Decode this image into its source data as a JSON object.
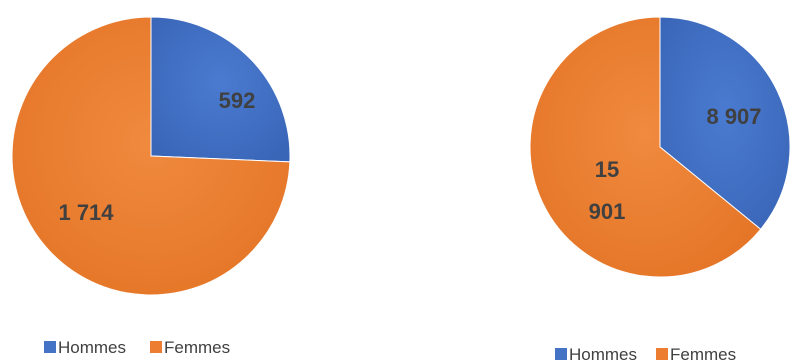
{
  "chart_data": [
    {
      "type": "pie",
      "categories": [
        "Hommes",
        "Femmes"
      ],
      "values": [
        592,
        1714
      ],
      "data_labels": [
        "592",
        "1 714"
      ],
      "colors": [
        "#4472c4",
        "#ed7d31"
      ],
      "legend": [
        "Hommes",
        "Femmes"
      ],
      "legend_position": "bottom"
    },
    {
      "type": "pie",
      "categories": [
        "Hommes",
        "Femmes"
      ],
      "values": [
        8907,
        15901
      ],
      "data_labels": [
        "8 907",
        "15\n901"
      ],
      "colors": [
        "#4472c4",
        "#ed7d31"
      ],
      "legend": [
        "Hommes",
        "Femmes"
      ],
      "legend_position": "bottom"
    }
  ]
}
